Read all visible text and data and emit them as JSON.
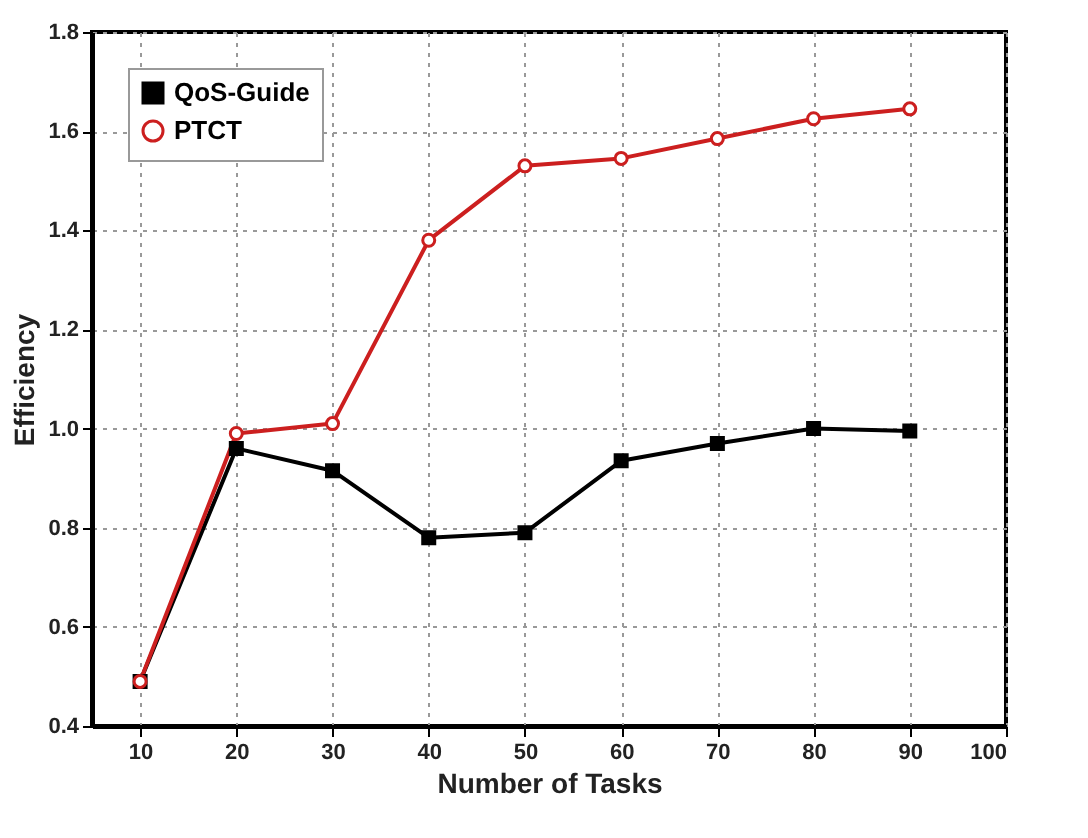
{
  "chart_data": {
    "type": "line",
    "xlabel": "Number of Tasks",
    "ylabel": "Efficiency",
    "x": [
      10,
      20,
      30,
      40,
      50,
      60,
      70,
      80,
      90
    ],
    "series": [
      {
        "name": "QoS-Guide",
        "color": "#000000",
        "marker": "square",
        "values": [
          0.49,
          0.96,
          0.915,
          0.78,
          0.79,
          0.935,
          0.97,
          1.0,
          0.995
        ]
      },
      {
        "name": "PTCT",
        "color": "#cc1f1f",
        "marker": "circle",
        "values": [
          0.49,
          0.99,
          1.01,
          1.38,
          1.53,
          1.545,
          1.585,
          1.625,
          1.645
        ]
      }
    ],
    "xlim": [
      5,
      100
    ],
    "xticks": [
      10,
      20,
      30,
      40,
      50,
      60,
      70,
      80,
      90,
      100
    ],
    "ylim": [
      0.4,
      1.8
    ],
    "yticks": [
      0.4,
      0.6,
      0.8,
      {
        "value": 1,
        "label": "1.0"
      },
      1.2,
      1.4,
      1.6,
      1.8
    ],
    "grid": true,
    "legend": "top left",
    "line_style": "solid"
  }
}
